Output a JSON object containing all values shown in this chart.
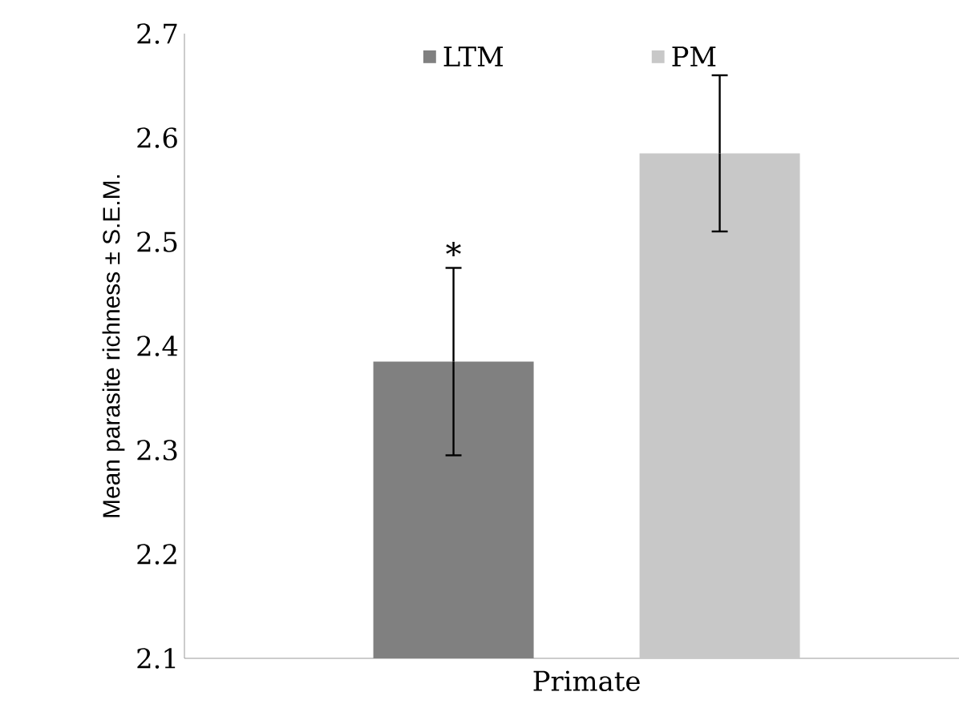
{
  "chart_data": {
    "type": "bar",
    "ylabel": "Mean parasite richness ± S.E.M.",
    "categories": [
      "Primate"
    ],
    "series": [
      {
        "name": "LTM",
        "color": "#808080",
        "values": [
          2.385
        ],
        "errors": [
          0.09
        ]
      },
      {
        "name": "PM",
        "color": "#c8c8c8",
        "values": [
          2.585
        ],
        "errors": [
          0.075
        ]
      }
    ],
    "ylim": [
      2.1,
      2.7
    ],
    "yticks": [
      2.1,
      2.2,
      2.3,
      2.4,
      2.5,
      2.6,
      2.7
    ],
    "grid": false,
    "legend": "top",
    "annotations": [
      "*"
    ]
  }
}
